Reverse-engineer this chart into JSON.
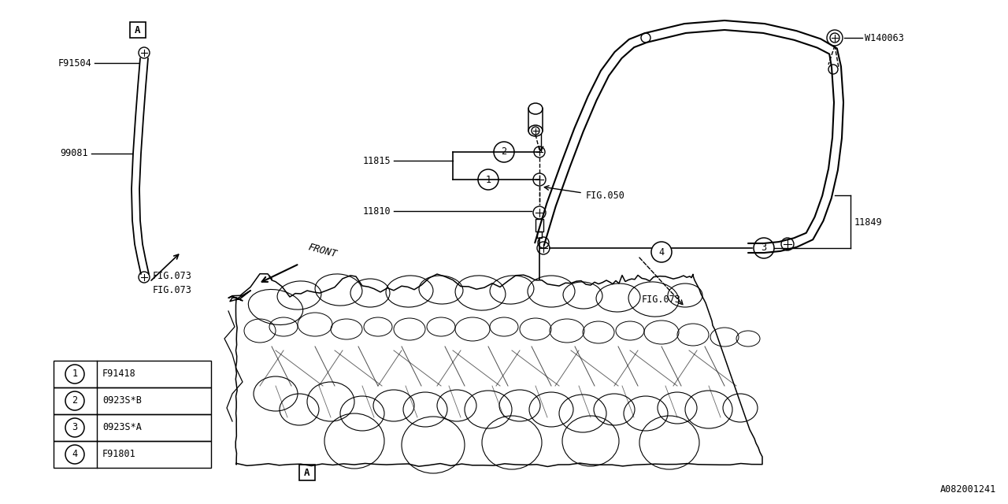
{
  "bg_color": "#ffffff",
  "lc": "#000000",
  "fig_w": 12.8,
  "fig_h": 6.4,
  "legend_items": [
    {
      "num": "1",
      "code": "F91418"
    },
    {
      "num": "2",
      "code": "0923S*B"
    },
    {
      "num": "3",
      "code": "0923S*A"
    },
    {
      "num": "4",
      "code": "F91801"
    }
  ],
  "id_text": "A082001241"
}
